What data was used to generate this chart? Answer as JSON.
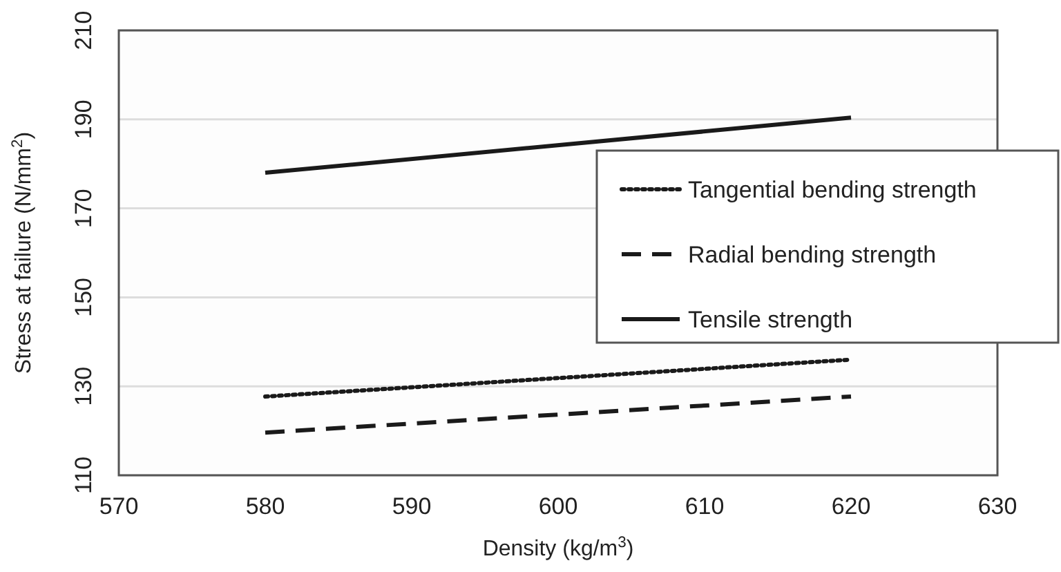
{
  "chart_data": {
    "type": "line",
    "xlabel": "Density (kg/m$^{3}$)",
    "ylabel": "Stress at failure (N/mm$^{2}$)",
    "x": [
      580,
      620
    ],
    "xlim": [
      570,
      630
    ],
    "xticks": [
      570,
      580,
      590,
      600,
      610,
      620,
      630
    ],
    "ylim": [
      110,
      210
    ],
    "yticks": [
      110,
      130,
      150,
      170,
      190,
      210
    ],
    "grid": "y",
    "legend": "right",
    "marker": "none",
    "series": [
      {
        "name": "Tangential bending strength",
        "color": "#1a1a1a",
        "values": [
          127.7,
          136
        ],
        "line_style": "dotted"
      },
      {
        "name": "Radial bending strength",
        "color": "#1a1a1a",
        "values": [
          119.6,
          127.7
        ],
        "line_style": "dashed"
      },
      {
        "name": "Tensile strength",
        "color": "#1a1a1a",
        "values": [
          178,
          190.4
        ],
        "line_style": "solid"
      }
    ]
  }
}
